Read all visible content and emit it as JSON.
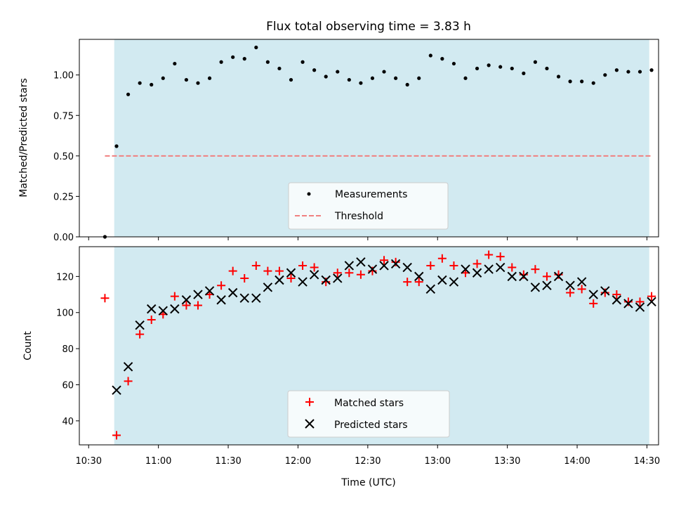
{
  "chart_data": [
    {
      "type": "scatter",
      "title": "Flux total observing time = 3.83 h",
      "ylabel": "Matched/Predicted stars",
      "xlabel": "",
      "xlim": [
        "10:26",
        "14:35"
      ],
      "ylim": [
        0,
        1.22
      ],
      "yticks": [
        "0.00",
        "0.25",
        "0.50",
        "0.75",
        "1.00"
      ],
      "shaded_region": [
        "10:41",
        "14:31"
      ],
      "shade_color": "#add8e6",
      "legend_position": "lower-center",
      "series": [
        {
          "name": "Measurements",
          "color": "#000000",
          "marker": "dot",
          "x": [
            "10:37",
            "10:42",
            "10:47",
            "10:52",
            "10:57",
            "11:02",
            "11:07",
            "11:12",
            "11:17",
            "11:22",
            "11:27",
            "11:32",
            "11:37",
            "11:42",
            "11:47",
            "11:52",
            "11:57",
            "12:02",
            "12:07",
            "12:12",
            "12:17",
            "12:22",
            "12:27",
            "12:32",
            "12:37",
            "12:42",
            "12:47",
            "12:52",
            "12:57",
            "13:02",
            "13:07",
            "13:12",
            "13:17",
            "13:22",
            "13:27",
            "13:32",
            "13:37",
            "13:42",
            "13:47",
            "13:52",
            "13:57",
            "14:02",
            "14:07",
            "14:12",
            "14:17",
            "14:22",
            "14:27",
            "14:32"
          ],
          "y": [
            0.0,
            0.56,
            0.88,
            0.95,
            0.94,
            0.98,
            1.07,
            0.97,
            0.95,
            0.98,
            1.08,
            1.11,
            1.1,
            1.17,
            1.08,
            1.04,
            0.97,
            1.08,
            1.03,
            0.99,
            1.02,
            0.97,
            0.95,
            0.98,
            1.02,
            0.98,
            0.94,
            0.98,
            1.12,
            1.1,
            1.07,
            0.98,
            1.04,
            1.06,
            1.05,
            1.04,
            1.01,
            1.08,
            1.04,
            0.99,
            0.96,
            0.96,
            0.95,
            1.0,
            1.03,
            1.02,
            1.02,
            1.03
          ]
        },
        {
          "name": "Threshold",
          "color": "#f08080",
          "style": "dashed",
          "x": [
            "10:37",
            "14:32"
          ],
          "y": [
            0.5,
            0.5
          ]
        }
      ]
    },
    {
      "type": "scatter",
      "title": "",
      "ylabel": "Count",
      "xlabel": "Time (UTC)",
      "xlim": [
        "10:26",
        "14:35"
      ],
      "ylim": [
        26.7,
        136.5
      ],
      "yticks": [
        "40",
        "60",
        "80",
        "100",
        "120"
      ],
      "xticks": [
        "10:30",
        "11:00",
        "11:30",
        "12:00",
        "12:30",
        "13:00",
        "13:30",
        "14:00",
        "14:30"
      ],
      "shaded_region": [
        "10:41",
        "14:31"
      ],
      "shade_color": "#add8e6",
      "legend_position": "lower-center",
      "series": [
        {
          "name": "Matched stars",
          "color": "#ff0000",
          "marker": "plus",
          "x": [
            "10:37",
            "10:42",
            "10:47",
            "10:52",
            "10:57",
            "11:02",
            "11:07",
            "11:12",
            "11:17",
            "11:22",
            "11:27",
            "11:32",
            "11:37",
            "11:42",
            "11:47",
            "11:52",
            "11:57",
            "12:02",
            "12:07",
            "12:12",
            "12:17",
            "12:22",
            "12:27",
            "12:32",
            "12:37",
            "12:42",
            "12:47",
            "12:52",
            "12:57",
            "13:02",
            "13:07",
            "13:12",
            "13:17",
            "13:22",
            "13:27",
            "13:32",
            "13:37",
            "13:42",
            "13:47",
            "13:52",
            "13:57",
            "14:02",
            "14:07",
            "14:12",
            "14:17",
            "14:22",
            "14:27",
            "14:32"
          ],
          "y": [
            108,
            32,
            62,
            88,
            96,
            99,
            109,
            104,
            104,
            110,
            115,
            123,
            119,
            126,
            123,
            123,
            119,
            126,
            125,
            117,
            122,
            122,
            121,
            123,
            129,
            128,
            117,
            117,
            126,
            130,
            126,
            122,
            127,
            132,
            131,
            125,
            121,
            124,
            120,
            121,
            111,
            113,
            105,
            111,
            110,
            106,
            106,
            109
          ]
        },
        {
          "name": "Predicted stars",
          "color": "#000000",
          "marker": "x",
          "x": [
            "10:42",
            "10:47",
            "10:52",
            "10:57",
            "11:02",
            "11:07",
            "11:12",
            "11:17",
            "11:22",
            "11:27",
            "11:32",
            "11:37",
            "11:42",
            "11:47",
            "11:52",
            "11:57",
            "12:02",
            "12:07",
            "12:12",
            "12:17",
            "12:22",
            "12:27",
            "12:32",
            "12:37",
            "12:42",
            "12:47",
            "12:52",
            "12:57",
            "13:02",
            "13:07",
            "13:12",
            "13:17",
            "13:22",
            "13:27",
            "13:32",
            "13:37",
            "13:42",
            "13:47",
            "13:52",
            "13:57",
            "14:02",
            "14:07",
            "14:12",
            "14:17",
            "14:22",
            "14:27",
            "14:32"
          ],
          "y": [
            57,
            70,
            93,
            102,
            101,
            102,
            107,
            110,
            112,
            107,
            111,
            108,
            108,
            114,
            118,
            122,
            117,
            121,
            118,
            119,
            126,
            128,
            124,
            126,
            127,
            125,
            120,
            113,
            118,
            117,
            124,
            122,
            124,
            125,
            120,
            120,
            114,
            115,
            120,
            115,
            117,
            110,
            112,
            107,
            105,
            103,
            106
          ]
        }
      ]
    }
  ]
}
